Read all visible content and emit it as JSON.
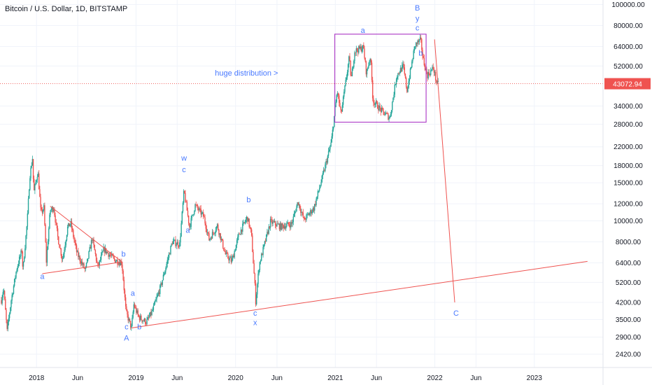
{
  "chart_data": {
    "type": "candlestick",
    "title": "Bitcoin / U.S. Dollar, 1D, BITSTAMP",
    "scale": "log",
    "ylim": [
      2100,
      105000
    ],
    "xlim": [
      "2017-08-20",
      "2023-09-10"
    ],
    "y_ticks": [
      "100000.00",
      "80000.00",
      "64000.00",
      "52000.00",
      "34000.00",
      "28000.00",
      "22000.00",
      "18000.00",
      "15000.00",
      "12000.00",
      "10000.00",
      "8000.00",
      "6400.00",
      "5200.00",
      "4200.00",
      "3500.00",
      "2900.00",
      "2420.00"
    ],
    "x_ticks": [
      {
        "label": "2018",
        "date": "2018-01-01",
        "bold": true
      },
      {
        "label": "Jun",
        "date": "2018-06-01",
        "bold": false
      },
      {
        "label": "2019",
        "date": "2019-01-01",
        "bold": true
      },
      {
        "label": "Jun",
        "date": "2019-06-01",
        "bold": false
      },
      {
        "label": "2020",
        "date": "2020-01-01",
        "bold": true
      },
      {
        "label": "Jun",
        "date": "2020-06-01",
        "bold": false
      },
      {
        "label": "2021",
        "date": "2021-01-01",
        "bold": true
      },
      {
        "label": "Jun",
        "date": "2021-06-01",
        "bold": false
      },
      {
        "label": "2022",
        "date": "2022-01-01",
        "bold": true
      },
      {
        "label": "Jun",
        "date": "2022-06-01",
        "bold": false
      },
      {
        "label": "2023",
        "date": "2023-01-01",
        "bold": true
      }
    ],
    "price_path": [
      [
        "2017-08-25",
        4300
      ],
      [
        "2017-09-02",
        4900
      ],
      [
        "2017-09-15",
        3100
      ],
      [
        "2017-09-30",
        4300
      ],
      [
        "2017-10-20",
        6000
      ],
      [
        "2017-11-08",
        7300
      ],
      [
        "2017-11-12",
        5900
      ],
      [
        "2017-11-28",
        10000
      ],
      [
        "2017-12-07",
        16000
      ],
      [
        "2017-12-17",
        19500
      ],
      [
        "2017-12-22",
        13500
      ],
      [
        "2018-01-06",
        17000
      ],
      [
        "2018-01-17",
        10800
      ],
      [
        "2018-01-28",
        11500
      ],
      [
        "2018-02-06",
        6500
      ],
      [
        "2018-02-20",
        11200
      ],
      [
        "2018-03-05",
        11500
      ],
      [
        "2018-03-20",
        8400
      ],
      [
        "2018-04-06",
        6600
      ],
      [
        "2018-04-25",
        9300
      ],
      [
        "2018-05-06",
        9800
      ],
      [
        "2018-05-29",
        7100
      ],
      [
        "2018-06-29",
        5900
      ],
      [
        "2018-07-24",
        8300
      ],
      [
        "2018-08-14",
        6100
      ],
      [
        "2018-09-05",
        7400
      ],
      [
        "2018-10-15",
        6600
      ],
      [
        "2018-11-10",
        6400
      ],
      [
        "2018-11-14",
        5600
      ],
      [
        "2018-11-25",
        3800
      ],
      [
        "2018-12-15",
        3200
      ],
      [
        "2018-12-24",
        4100
      ],
      [
        "2019-01-10",
        3600
      ],
      [
        "2019-02-08",
        3400
      ],
      [
        "2019-03-01",
        3800
      ],
      [
        "2019-04-02",
        5000
      ],
      [
        "2019-05-14",
        8000
      ],
      [
        "2019-06-10",
        7800
      ],
      [
        "2019-06-26",
        13800
      ],
      [
        "2019-07-16",
        9400
      ],
      [
        "2019-08-06",
        11800
      ],
      [
        "2019-09-06",
        10500
      ],
      [
        "2019-09-26",
        8200
      ],
      [
        "2019-10-26",
        9500
      ],
      [
        "2019-11-25",
        7000
      ],
      [
        "2019-12-18",
        6500
      ],
      [
        "2020-01-14",
        8700
      ],
      [
        "2020-02-13",
        10400
      ],
      [
        "2020-02-28",
        8700
      ],
      [
        "2020-03-12",
        5000
      ],
      [
        "2020-03-13",
        4000
      ],
      [
        "2020-03-28",
        6300
      ],
      [
        "2020-05-08",
        9900
      ],
      [
        "2020-06-15",
        9400
      ],
      [
        "2020-07-25",
        9700
      ],
      [
        "2020-08-17",
        12300
      ],
      [
        "2020-09-08",
        10100
      ],
      [
        "2020-10-15",
        11500
      ],
      [
        "2020-11-15",
        16000
      ],
      [
        "2020-12-17",
        23000
      ],
      [
        "2021-01-08",
        40000
      ],
      [
        "2021-01-22",
        31000
      ],
      [
        "2021-02-21",
        57000
      ],
      [
        "2021-02-28",
        45000
      ],
      [
        "2021-03-13",
        61000
      ],
      [
        "2021-04-14",
        63500
      ],
      [
        "2021-04-25",
        48000
      ],
      [
        "2021-05-10",
        58000
      ],
      [
        "2021-05-19",
        36000
      ],
      [
        "2021-06-22",
        32000
      ],
      [
        "2021-07-20",
        30000
      ],
      [
        "2021-08-14",
        47000
      ],
      [
        "2021-09-07",
        52000
      ],
      [
        "2021-09-21",
        40000
      ],
      [
        "2021-10-20",
        65000
      ],
      [
        "2021-11-10",
        68500
      ],
      [
        "2021-11-19",
        56000
      ],
      [
        "2021-12-04",
        47000
      ],
      [
        "2021-12-27",
        51000
      ],
      [
        "2022-01-04",
        45500
      ],
      [
        "2022-01-10",
        42500
      ],
      [
        "2022-01-13",
        43072
      ]
    ],
    "last_price": {
      "value": 43072.94,
      "label": "43072.94"
    },
    "lines": [
      {
        "name": "triangle-upper",
        "color": "#ef5350",
        "from": [
          "2018-02-20",
          11700
        ],
        "to": [
          "2018-11-08",
          6500
        ]
      },
      {
        "name": "triangle-lower",
        "color": "#ef5350",
        "from": [
          "2018-01-22",
          5700
        ],
        "to": [
          "2018-11-08",
          6450
        ]
      },
      {
        "name": "long-support",
        "color": "#ef5350",
        "from": [
          "2018-12-15",
          3200
        ],
        "to": [
          "2023-07-15",
          6500
        ]
      },
      {
        "name": "projected-drop",
        "color": "#ef5350",
        "from": [
          "2021-12-31",
          69000
        ],
        "to": [
          "2022-03-15",
          4200
        ]
      }
    ],
    "box": {
      "name": "distribution-box",
      "color": "#b145c9",
      "from": [
        "2020-12-30",
        28600
      ],
      "to": [
        "2021-11-30",
        73000
      ]
    },
    "annotations": [
      {
        "text": "huge distribution >",
        "date": "2020-06-05",
        "price": 47000
      },
      {
        "text": "a",
        "date": "2021-04-12",
        "price": 74000
      },
      {
        "text": "B",
        "date": "2021-10-29",
        "price": 94000
      },
      {
        "text": "y",
        "date": "2021-10-29",
        "price": 84000
      },
      {
        "text": "c",
        "date": "2021-10-29",
        "price": 76000
      },
      {
        "text": "b",
        "date": "2021-11-10",
        "price": 58000
      },
      {
        "text": "a",
        "date": "2018-01-22",
        "price": 5400
      },
      {
        "text": "b",
        "date": "2018-11-16",
        "price": 6850
      },
      {
        "text": "a",
        "date": "2018-12-20",
        "price": 4500
      },
      {
        "text": "c",
        "date": "2018-11-27",
        "price": 3150
      },
      {
        "text": "A",
        "date": "2018-11-27",
        "price": 2800
      },
      {
        "text": "b",
        "date": "2019-01-13",
        "price": 3150
      },
      {
        "text": "w",
        "date": "2019-06-26",
        "price": 19000
      },
      {
        "text": "c",
        "date": "2019-06-26",
        "price": 16800
      },
      {
        "text": "a",
        "date": "2019-07-10",
        "price": 8800
      },
      {
        "text": "b",
        "date": "2020-02-18",
        "price": 12200
      },
      {
        "text": "c",
        "date": "2020-03-13",
        "price": 3650
      },
      {
        "text": "x",
        "date": "2020-03-13",
        "price": 3300
      },
      {
        "text": "C",
        "date": "2022-03-20",
        "price": 3650
      }
    ]
  }
}
